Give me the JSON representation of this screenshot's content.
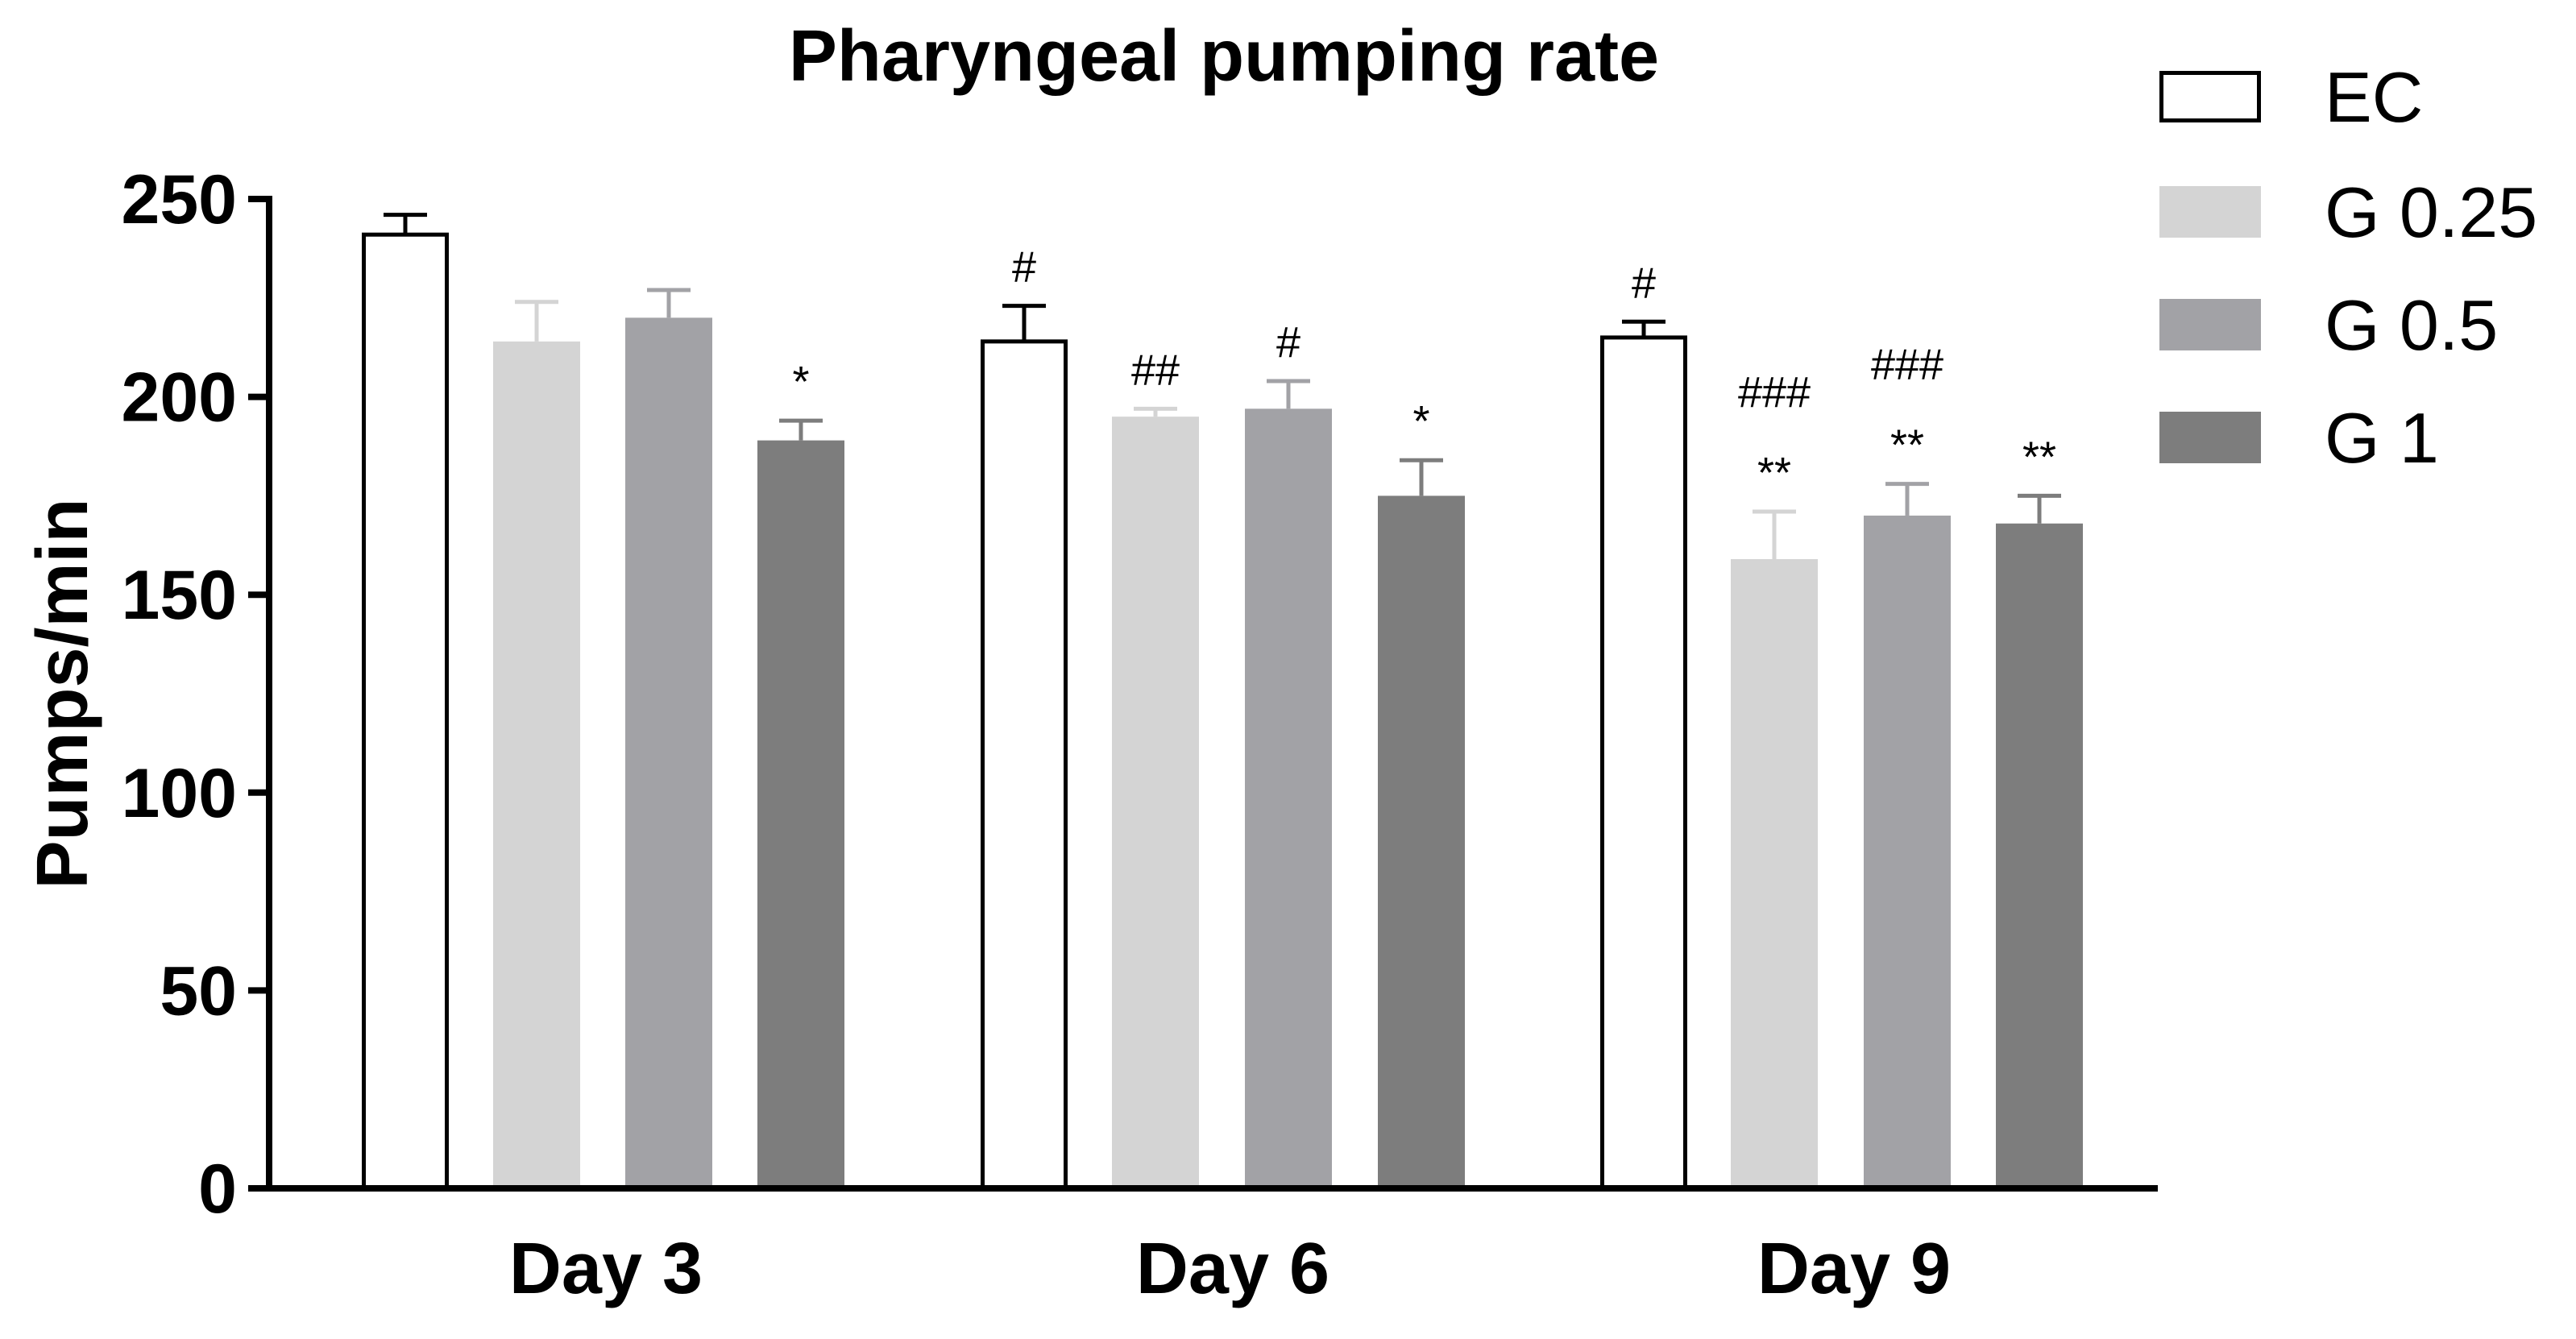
{
  "chart_data": {
    "type": "bar",
    "title": "Pharyngeal pumping rate",
    "xlabel": "",
    "ylabel": "Pumps/min",
    "ylim": [
      0,
      250
    ],
    "yticks": [
      "0",
      "50",
      "100",
      "150",
      "200",
      "250"
    ],
    "categories": [
      "Day 3",
      "Day 6",
      "Day 9"
    ],
    "series": [
      {
        "name": "EC",
        "color": "#ffffff",
        "values": [
          241,
          214,
          215
        ],
        "errors": [
          5,
          9,
          4
        ],
        "annotations": [
          "",
          "#",
          "#"
        ]
      },
      {
        "name": "G 0.25",
        "color": "#d4d4d4",
        "values": [
          214,
          195,
          159
        ],
        "errors": [
          10,
          2,
          12
        ],
        "annotations": [
          "",
          "##",
          "**|###"
        ]
      },
      {
        "name": "G 0.5",
        "color": "#a2a2a6",
        "values": [
          220,
          197,
          170
        ],
        "errors": [
          7,
          7,
          8
        ],
        "annotations": [
          "",
          "#",
          "**|###"
        ]
      },
      {
        "name": "G 1",
        "color": "#7d7d7d",
        "values": [
          189,
          175,
          168
        ],
        "errors": [
          5,
          9,
          7
        ],
        "annotations": [
          "*",
          "*",
          "**"
        ]
      }
    ],
    "grid": false,
    "legend": "top-right",
    "border_color": "#000000"
  }
}
